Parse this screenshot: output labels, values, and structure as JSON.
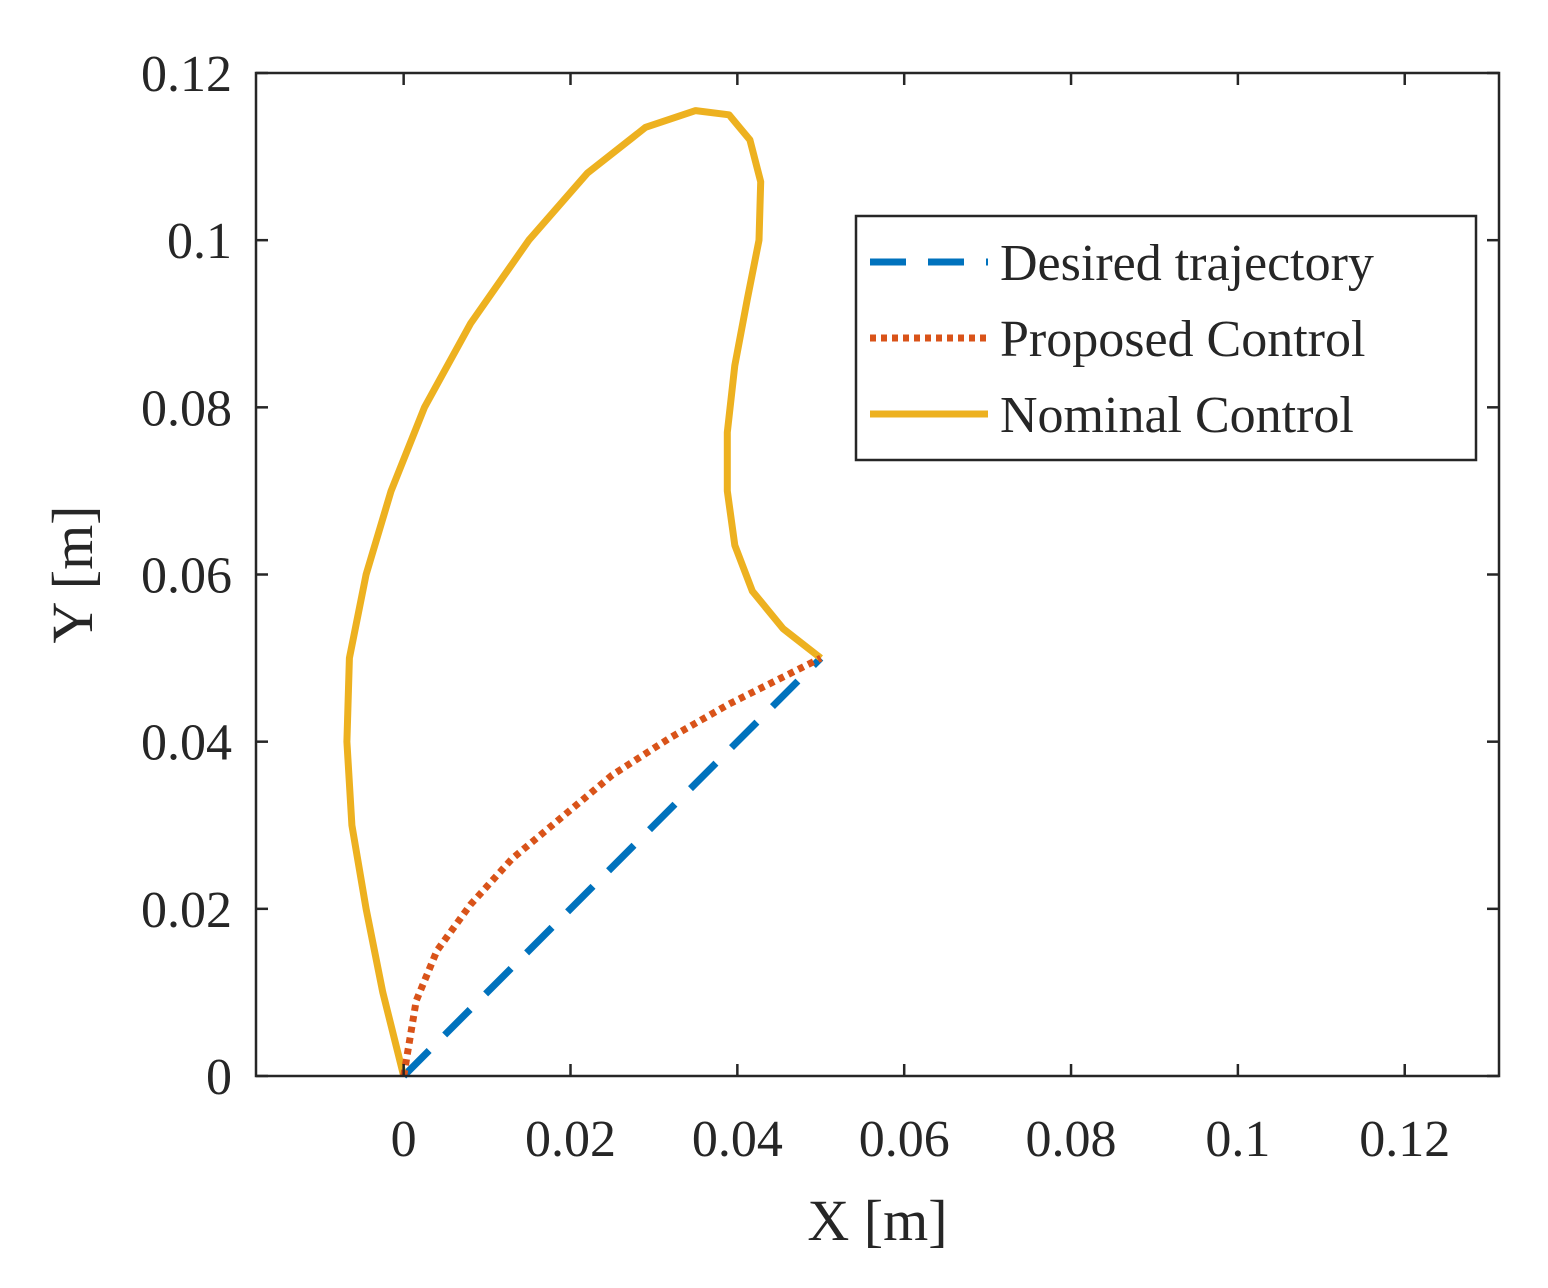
{
  "chart_data": {
    "type": "line",
    "title": "",
    "xlabel": "X [m]",
    "ylabel": "Y [m]",
    "xlim": [
      -0.0177,
      0.1313
    ],
    "ylim": [
      0,
      0.12
    ],
    "xticks": [
      0,
      0.02,
      0.04,
      0.06,
      0.08,
      0.1,
      0.12
    ],
    "xtick_labels": [
      "0",
      "0.02",
      "0.04",
      "0.06",
      "0.08",
      "0.1",
      "0.12"
    ],
    "yticks": [
      0,
      0.02,
      0.04,
      0.06,
      0.08,
      0.1,
      0.12
    ],
    "ytick_labels": [
      "0",
      "0.02",
      "0.04",
      "0.06",
      "0.08",
      "0.1",
      "0.12"
    ],
    "grid": false,
    "legend_position": "top-right",
    "series": [
      {
        "name": "Desired trajectory",
        "color": "#0072BD",
        "style": "dashed",
        "x": [
          0,
          0.05
        ],
        "y": [
          0,
          0.05
        ]
      },
      {
        "name": "Proposed Control",
        "color": "#D95319",
        "style": "dotted",
        "x": [
          0,
          0.0015,
          0.004,
          0.008,
          0.013,
          0.019,
          0.025,
          0.032,
          0.039,
          0.045,
          0.05
        ],
        "y": [
          0,
          0.009,
          0.015,
          0.0205,
          0.026,
          0.031,
          0.036,
          0.0405,
          0.0445,
          0.0475,
          0.05
        ]
      },
      {
        "name": "Nominal Control",
        "color": "#EDB120",
        "style": "solid",
        "x": [
          0,
          -0.0025,
          -0.0045,
          -0.0062,
          -0.0068,
          -0.0065,
          -0.0045,
          -0.0015,
          0.0025,
          0.008,
          0.015,
          0.022,
          0.029,
          0.035,
          0.039,
          0.0415,
          0.0428,
          0.0426,
          0.0412,
          0.0397,
          0.0388,
          0.0388,
          0.0397,
          0.0418,
          0.0455,
          0.05
        ],
        "y": [
          0,
          0.01,
          0.02,
          0.03,
          0.04,
          0.05,
          0.06,
          0.07,
          0.08,
          0.09,
          0.1,
          0.108,
          0.1135,
          0.1155,
          0.115,
          0.112,
          0.107,
          0.1,
          0.093,
          0.085,
          0.077,
          0.07,
          0.0635,
          0.058,
          0.0535,
          0.05
        ]
      }
    ]
  }
}
